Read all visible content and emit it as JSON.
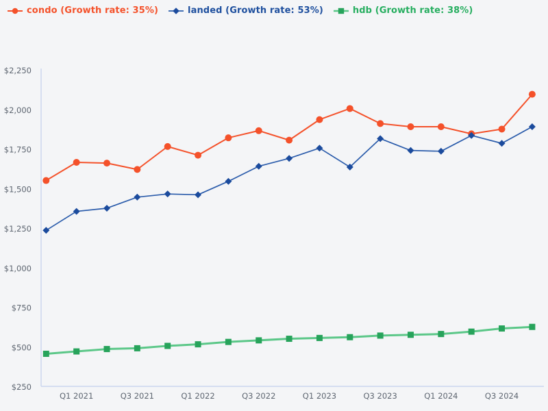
{
  "page": {
    "background_color": "#f4f5f7"
  },
  "legend": {
    "position": "top-left",
    "items": [
      {
        "id": "condo",
        "label": "condo (Growth rate: 35%)",
        "text_color": "#f4512a",
        "marker": "circle"
      },
      {
        "id": "landed",
        "label": "landed (Growth rate: 53%)",
        "text_color": "#1e4f9e",
        "marker": "diamond"
      },
      {
        "id": "hdb",
        "label": "hdb (Growth rate: 38%)",
        "text_color": "#27ae60",
        "marker": "square"
      }
    ]
  },
  "chart_data": {
    "type": "line",
    "title": "",
    "xlabel": "",
    "ylabel": "",
    "grid": false,
    "legend_position": "top-left",
    "categories": [
      "Q4 2020",
      "Q1 2021",
      "Q2 2021",
      "Q3 2021",
      "Q4 2021",
      "Q1 2022",
      "Q2 2022",
      "Q3 2022",
      "Q4 2022",
      "Q1 2023",
      "Q2 2023",
      "Q3 2023",
      "Q4 2023",
      "Q1 2024",
      "Q2 2024",
      "Q3 2024",
      "Q4 2024"
    ],
    "series": [
      {
        "name": "condo",
        "growth_rate": "35%",
        "marker": "circle",
        "line_color": "#f4512a",
        "marker_color": "#f4512a",
        "line_width": 2,
        "values": [
          1555,
          1670,
          1665,
          1625,
          1770,
          1715,
          1825,
          1870,
          1810,
          1940,
          2010,
          1915,
          1895,
          1895,
          1850,
          1880,
          2100
        ]
      },
      {
        "name": "landed",
        "growth_rate": "53%",
        "marker": "diamond",
        "line_color": "#2b5cab",
        "marker_color": "#1b4b9d",
        "line_width": 1.7,
        "values": [
          1240,
          1360,
          1380,
          1450,
          1470,
          1465,
          1550,
          1645,
          1695,
          1760,
          1640,
          1820,
          1745,
          1740,
          1840,
          1790,
          1895
        ]
      },
      {
        "name": "hdb",
        "growth_rate": "38%",
        "marker": "square",
        "line_color": "#5bc788",
        "marker_color": "#27a35b",
        "line_width": 3,
        "values": [
          460,
          475,
          490,
          495,
          510,
          520,
          535,
          545,
          555,
          560,
          565,
          575,
          580,
          585,
          600,
          620,
          630
        ]
      }
    ],
    "y_axis": {
      "min": 250,
      "max": 2250,
      "ticks": [
        {
          "label": "$250",
          "value": 250
        },
        {
          "label": "$500",
          "value": 500
        },
        {
          "label": "$750",
          "value": 750
        },
        {
          "label": "$1,000",
          "value": 1000
        },
        {
          "label": "$1,250",
          "value": 1250
        },
        {
          "label": "$1,500",
          "value": 1500
        },
        {
          "label": "$1,750",
          "value": 1750
        },
        {
          "label": "$2,000",
          "value": 2000
        },
        {
          "label": "$2,250",
          "value": 2250
        }
      ]
    },
    "x_axis": {
      "tick_labels": [
        "Q1 2021",
        "Q3 2021",
        "Q1 2022",
        "Q3 2022",
        "Q1 2023",
        "Q3 2023",
        "Q1 2024",
        "Q3 2024"
      ],
      "tick_indices": [
        1,
        3,
        5,
        7,
        9,
        11,
        13,
        15
      ]
    },
    "axis_line_color": "#c9d5ee",
    "tick_text_color": "#5d6570"
  }
}
